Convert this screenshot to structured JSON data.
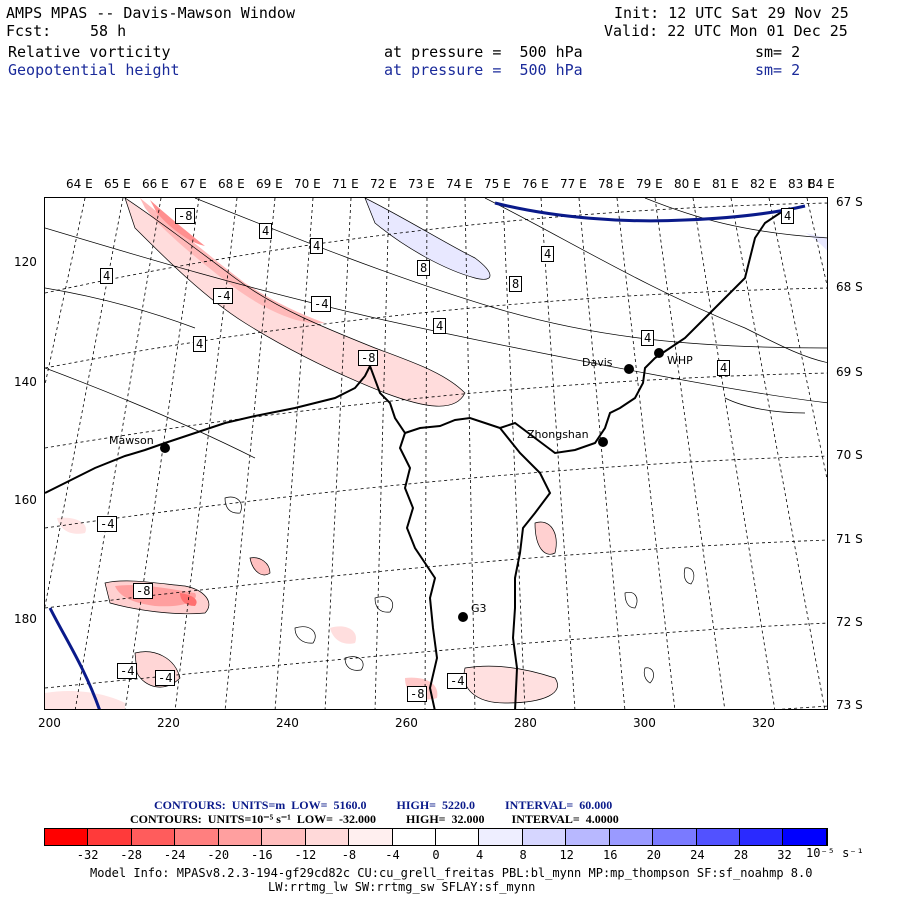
{
  "header": {
    "title": "AMPS MPAS -- Davis-Mawson Window",
    "fcst_label": "Fcst:",
    "fcst_value": "58 h",
    "init": "Init: 12 UTC Sat 29 Nov 25",
    "valid": "Valid: 22 UTC Mon 01 Dec 25",
    "field1": {
      "name": "Relative vorticity",
      "level": "at pressure =  500 hPa",
      "sm": "sm= 2"
    },
    "field2": {
      "name": "Geopotential height",
      "level": "at pressure =  500 hPa",
      "sm": "sm= 2"
    }
  },
  "axes": {
    "top_lon": [
      "64 E",
      "65 E",
      "66 E",
      "67 E",
      "68 E",
      "69 E",
      "70 E",
      "71 E",
      "72 E",
      "73 E",
      "74 E",
      "75 E",
      "76 E",
      "77 E",
      "78 E",
      "79 E",
      "80 E",
      "81 E",
      "82 E",
      "83 E",
      "84 E"
    ],
    "right_lat": [
      "67 S",
      "68 S",
      "69 S",
      "70 S",
      "71 S",
      "72 S",
      "73 S"
    ],
    "left_y": [
      "120",
      "140",
      "160",
      "180"
    ],
    "bottom_x": [
      "200",
      "220",
      "240",
      "260",
      "280",
      "300",
      "320"
    ]
  },
  "stations": [
    {
      "name": "Mawson"
    },
    {
      "name": "Davis"
    },
    {
      "name": "WHP"
    },
    {
      "name": "Zhongshan"
    },
    {
      "name": "G3"
    }
  ],
  "contour_labels": [
    "-8",
    "4",
    "4",
    "-4",
    "4",
    "-4",
    "8",
    "4",
    "8",
    "4",
    "4",
    "-8",
    "4",
    "4",
    "4",
    "-4",
    "-8",
    "-4",
    "-4",
    "-8",
    "-4"
  ],
  "contours": {
    "line1": "CONTOURS:  UNITS=m  LOW=  5160.0          HIGH=  5220.0          INTERVAL=  60.000",
    "line2": "CONTOURS:  UNITS=10⁻⁵ s⁻¹  LOW=  -32.000          HIGH=  32.000         INTERVAL=  4.0000"
  },
  "colorbar": {
    "colors": [
      "#ff0000",
      "#ff3a3a",
      "#ff5c5c",
      "#ff7f7f",
      "#ff9f9f",
      "#ffbdbd",
      "#ffd9d9",
      "#ffefef",
      "#ffffff",
      "#ffffff",
      "#eeeeff",
      "#d6d6ff",
      "#b8b8ff",
      "#9a9aff",
      "#7a7aff",
      "#5252ff",
      "#2a2aff",
      "#0000ff"
    ],
    "labels": [
      "-32",
      "-28",
      "-24",
      "-20",
      "-16",
      "-12",
      "-8",
      "-4",
      "0",
      "4",
      "8",
      "12",
      "16",
      "20",
      "24",
      "28",
      "32"
    ],
    "units": "10⁻⁵ s⁻¹"
  },
  "model_info": {
    "line1": "Model Info: MPASv8.2.3-194-gf29cd82c CU:cu_grell_freitas PBL:bl_mynn MP:mp_thompson SF:sf_noahmp 8.0",
    "line2": "LW:rrtmg_lw SW:rrtmg_sw SFLAY:sf_mynn"
  }
}
